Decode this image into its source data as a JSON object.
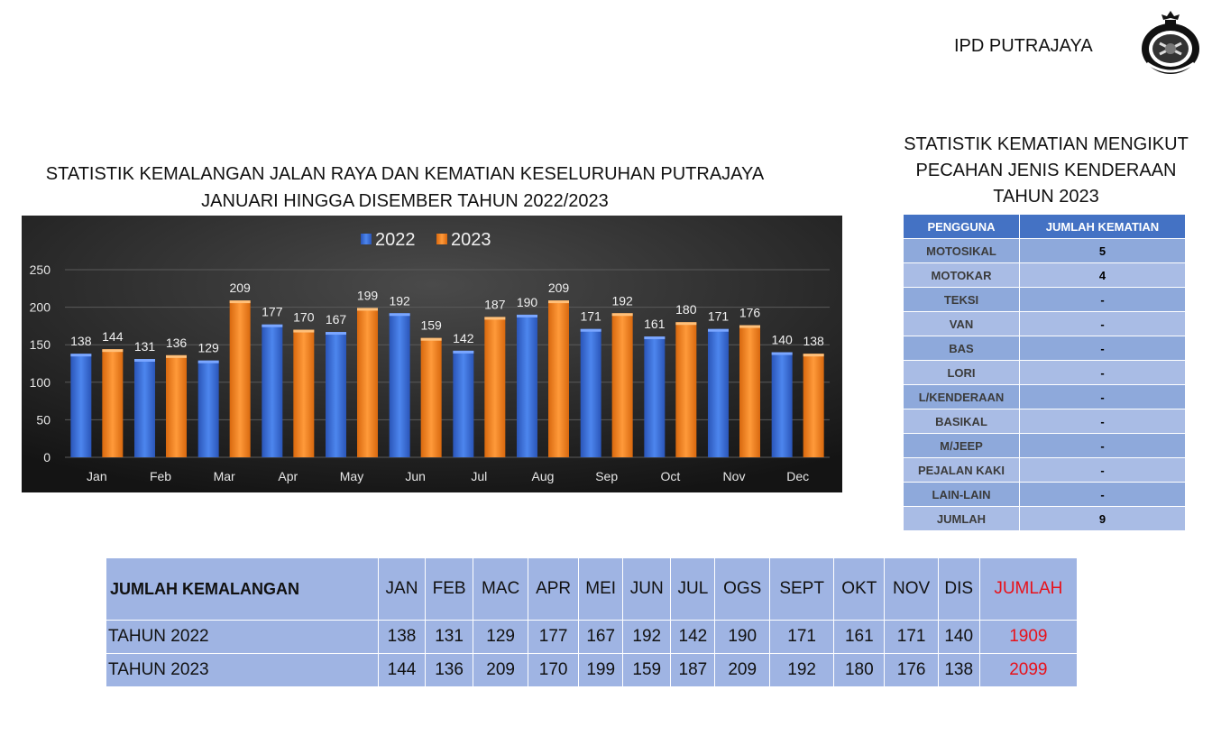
{
  "header": {
    "org": "IPD PUTRAJAYA",
    "seal_icon": "police-crest-icon"
  },
  "chart_title": [
    "STATISTIK KEMALANGAN JALAN RAYA DAN KEMATIAN KESELURUHAN  PUTRAJAYA",
    "JANUARI HINGGA DISEMBER TAHUN 2022/2023"
  ],
  "chart_data": {
    "type": "bar",
    "categories": [
      "Jan",
      "Feb",
      "Mar",
      "Apr",
      "May",
      "Jun",
      "Jul",
      "Aug",
      "Sep",
      "Oct",
      "Nov",
      "Dec"
    ],
    "series": [
      {
        "name": "2022",
        "color": "#3A6FD6",
        "values": [
          138,
          131,
          129,
          177,
          167,
          192,
          142,
          190,
          171,
          161,
          171,
          140
        ]
      },
      {
        "name": "2023",
        "color": "#F08320",
        "values": [
          144,
          136,
          209,
          170,
          199,
          159,
          187,
          209,
          192,
          180,
          176,
          138
        ]
      }
    ],
    "ylim": [
      0,
      250
    ],
    "yticks": [
      0,
      50,
      100,
      150,
      200,
      250
    ],
    "grid": true,
    "legend": "top-center",
    "data_labels": true
  },
  "side_title": [
    "STATISTIK KEMATIAN MENGIKUT",
    "PECAHAN JENIS KENDERAAN",
    "TAHUN 2023"
  ],
  "vehicle_table": {
    "headers": [
      "PENGGUNA",
      "JUMLAH KEMATIAN"
    ],
    "rows": [
      {
        "label": "MOTOSIKAL",
        "value": "5"
      },
      {
        "label": "MOTOKAR",
        "value": "4"
      },
      {
        "label": "TEKSI",
        "value": "-"
      },
      {
        "label": "VAN",
        "value": "-"
      },
      {
        "label": "BAS",
        "value": "-"
      },
      {
        "label": "LORI",
        "value": "-"
      },
      {
        "label": "L/KENDERAAN",
        "value": "-"
      },
      {
        "label": "BASIKAL",
        "value": "-"
      },
      {
        "label": "M/JEEP",
        "value": "-"
      },
      {
        "label": "PEJALAN KAKI",
        "value": "-"
      },
      {
        "label": "LAIN-LAIN",
        "value": "-"
      },
      {
        "label": "JUMLAH",
        "value": "9"
      }
    ]
  },
  "monthly_table": {
    "corner": "JUMLAH KEMALANGAN",
    "months": [
      "JAN",
      "FEB",
      "MAC",
      "APR",
      "MEI",
      "JUN",
      "JUL",
      "OGS",
      "SEPT",
      "OKT",
      "NOV",
      "DIS"
    ],
    "total_header": "JUMLAH",
    "rows": [
      {
        "label": "TAHUN 2022",
        "values": [
          "138",
          "131",
          "129",
          "177",
          "167",
          "192",
          "142",
          "190",
          "171",
          "161",
          "171",
          "140"
        ],
        "total": "1909"
      },
      {
        "label": "TAHUN 2023",
        "values": [
          "144",
          "136",
          "209",
          "170",
          "199",
          "159",
          "187",
          "209",
          "192",
          "180",
          "176",
          "138"
        ],
        "total": "2099"
      }
    ]
  }
}
